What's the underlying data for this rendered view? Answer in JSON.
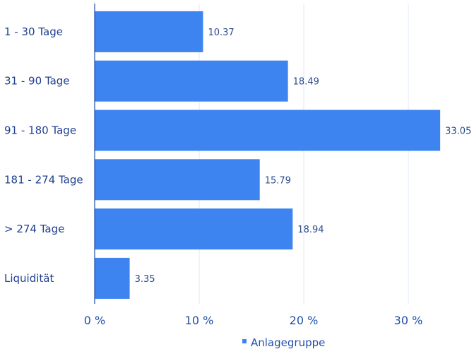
{
  "chart_data": {
    "type": "bar",
    "orientation": "horizontal",
    "categories": [
      "1 - 30 Tage",
      "31 - 90 Tage",
      "91 - 180 Tage",
      "181 - 274 Tage",
      "> 274 Tage",
      "Liquidität"
    ],
    "series": [
      {
        "name": "Anlagegruppe",
        "values": [
          10.37,
          18.49,
          33.05,
          15.79,
          18.94,
          3.35
        ],
        "value_labels": [
          "10.37",
          "18.49",
          "33.05",
          "15.79",
          "18.94",
          "3.35"
        ]
      }
    ],
    "xlim": [
      0,
      36
    ],
    "x_ticks": [
      0,
      10,
      20,
      30
    ],
    "x_tick_labels": [
      "0 %",
      "10 %",
      "20 %",
      "30 %"
    ],
    "grid": "vertical",
    "legend": "bottom-center",
    "bar_color": "#3d84f0",
    "grid_color": "#dde8f5",
    "axis_color": "#1f4fa8"
  }
}
